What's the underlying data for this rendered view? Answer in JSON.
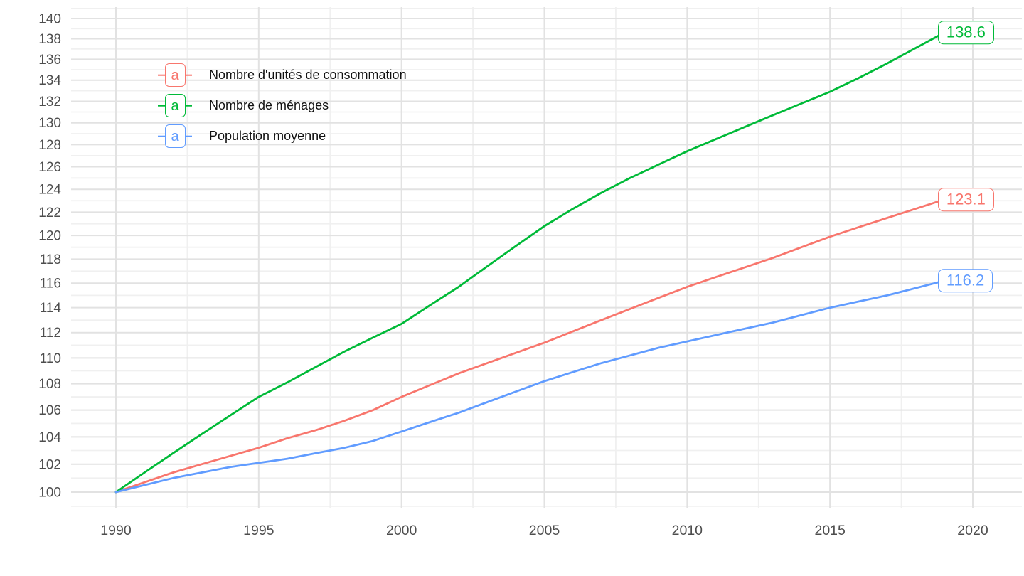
{
  "chart_data": {
    "type": "line",
    "title": "",
    "xlabel": "",
    "ylabel": "",
    "y_scale": "log",
    "grid": true,
    "legend_position": "top-left-inside",
    "legend_key_glyph": "a",
    "x_range": [
      1988.4,
      2021.6
    ],
    "y_range": [
      98.9,
      141.1
    ],
    "x_ticks": [
      "1990",
      "1995",
      "2000",
      "2005",
      "2010",
      "2015",
      "2020"
    ],
    "y_ticks": [
      "100",
      "102",
      "104",
      "106",
      "108",
      "110",
      "112",
      "114",
      "116",
      "118",
      "120",
      "122",
      "124",
      "126",
      "128",
      "130",
      "132",
      "134",
      "136",
      "138",
      "140"
    ],
    "x": [
      1990,
      1991,
      1992,
      1993,
      1994,
      1995,
      1996,
      1997,
      1998,
      1999,
      2000,
      2001,
      2002,
      2003,
      2004,
      2005,
      2006,
      2007,
      2008,
      2009,
      2010,
      2011,
      2012,
      2013,
      2014,
      2015,
      2016,
      2017,
      2018,
      2019
    ],
    "series": [
      {
        "name": "Nombre d'unités de consommation",
        "color": "#F8766D",
        "end_label": "123.1",
        "values": [
          100,
          100.7,
          101.4,
          102.0,
          102.6,
          103.2,
          103.9,
          104.5,
          105.2,
          106.0,
          107.0,
          107.9,
          108.8,
          109.6,
          110.4,
          111.2,
          112.1,
          113.0,
          113.9,
          114.8,
          115.7,
          116.5,
          117.3,
          118.1,
          119.0,
          119.9,
          120.7,
          121.5,
          122.3,
          123.1
        ]
      },
      {
        "name": "Nombre de ménages",
        "color": "#00BA38",
        "end_label": "138.6",
        "values": [
          100,
          101.4,
          102.8,
          104.2,
          105.6,
          107.0,
          108.1,
          109.3,
          110.5,
          111.6,
          112.7,
          114.2,
          115.7,
          117.4,
          119.1,
          120.8,
          122.3,
          123.7,
          125.0,
          126.2,
          127.4,
          128.5,
          129.6,
          130.7,
          131.8,
          132.9,
          134.2,
          135.6,
          137.1,
          138.6
        ]
      },
      {
        "name": "Population moyenne",
        "color": "#619CFF",
        "end_label": "116.2",
        "values": [
          100,
          100.5,
          101.0,
          101.4,
          101.8,
          102.1,
          102.4,
          102.8,
          103.2,
          103.7,
          104.4,
          105.1,
          105.8,
          106.6,
          107.4,
          108.2,
          108.9,
          109.6,
          110.2,
          110.8,
          111.3,
          111.8,
          112.3,
          112.8,
          113.4,
          114.0,
          114.5,
          115.0,
          115.6,
          116.2
        ]
      }
    ],
    "colors": {
      "background": "#ffffff",
      "grid_major": "#e2e2e2",
      "grid_minor": "#f0f0f0",
      "axis_text": "#4d4d4d",
      "legend_text": "#111111"
    }
  }
}
